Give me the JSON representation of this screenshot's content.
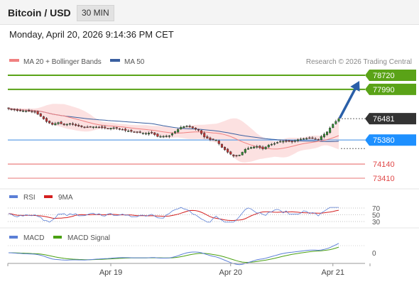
{
  "header": {
    "title": "Bitcoin / USD",
    "timeframe": "30 MIN",
    "datetime": "Monday, April 20, 2026 9:14:36 PM CET"
  },
  "legend": {
    "ma20_label": "MA 20 + Bollinger Bands",
    "ma50_label": "MA 50",
    "credit": "Research © 2026 Trading Central",
    "rsi_label": "RSI",
    "rsi_ma_label": "9MA",
    "macd_label": "MACD",
    "macd_signal_label": "MACD Signal"
  },
  "colors": {
    "resistance": "#5aa317",
    "support": "#1e90ff",
    "support_line": "#6fa8e8",
    "weak_support": "#e04848",
    "price_tag": "#333333",
    "arrow": "#2a5fa8",
    "ma20": "#f08080",
    "bollinger_fill": "#fbdcdc",
    "ma50": "#3a5fa0",
    "candle_up": "#2f8f2f",
    "candle_down": "#c83232",
    "rsi": "#5b7fd6",
    "rsi_ma": "#d42020",
    "macd": "#5b7fd6",
    "macd_signal": "#4aa012"
  },
  "chart_data": {
    "type": "candlestick",
    "instrument": "Bitcoin / USD",
    "timeframe": "30 MIN",
    "price_range": [
      73200,
      79000
    ],
    "current_price": 76481,
    "levels": {
      "resistances": [
        78720,
        77990
      ],
      "pivot": 75380,
      "supports": [
        74140,
        73410
      ]
    },
    "forecast_target": 78720,
    "x_ticks": [
      "Apr 19",
      "Apr 20",
      "Apr 21"
    ],
    "x_tick_index": [
      35,
      76,
      111
    ],
    "close_path": [
      [
        0,
        77000
      ],
      [
        3,
        76900
      ],
      [
        6,
        76880
      ],
      [
        9,
        76820
      ],
      [
        11,
        76600
      ],
      [
        13,
        76330
      ],
      [
        15,
        76180
      ],
      [
        17,
        76280
      ],
      [
        19,
        76160
      ],
      [
        21,
        76230
      ],
      [
        23,
        76130
      ],
      [
        26,
        76030
      ],
      [
        28,
        76070
      ],
      [
        30,
        76050
      ],
      [
        32,
        76020
      ],
      [
        34,
        75980
      ],
      [
        36,
        76010
      ],
      [
        38,
        75960
      ],
      [
        40,
        75870
      ],
      [
        43,
        75800
      ],
      [
        45,
        75770
      ],
      [
        47,
        75720
      ],
      [
        49,
        75760
      ],
      [
        51,
        75560
      ],
      [
        53,
        75570
      ],
      [
        55,
        75600
      ],
      [
        57,
        75820
      ],
      [
        59,
        76040
      ],
      [
        61,
        76100
      ],
      [
        63,
        76000
      ],
      [
        65,
        75880
      ],
      [
        67,
        75540
      ],
      [
        69,
        75400
      ],
      [
        71,
        75380
      ],
      [
        73,
        75000
      ],
      [
        75,
        74750
      ],
      [
        77,
        74550
      ],
      [
        79,
        74600
      ],
      [
        81,
        74900
      ],
      [
        83,
        75000
      ],
      [
        85,
        75050
      ],
      [
        87,
        74920
      ],
      [
        89,
        75120
      ],
      [
        91,
        75200
      ],
      [
        93,
        75310
      ],
      [
        95,
        75330
      ],
      [
        97,
        75280
      ],
      [
        99,
        75400
      ],
      [
        101,
        75450
      ],
      [
        103,
        75480
      ],
      [
        105,
        75440
      ],
      [
        106,
        75380
      ],
      [
        107,
        75560
      ],
      [
        109,
        75800
      ],
      [
        111,
        76200
      ],
      [
        113,
        76481
      ]
    ],
    "rsi_levels": [
      70,
      50,
      30
    ],
    "macd_levels": [
      0
    ]
  }
}
